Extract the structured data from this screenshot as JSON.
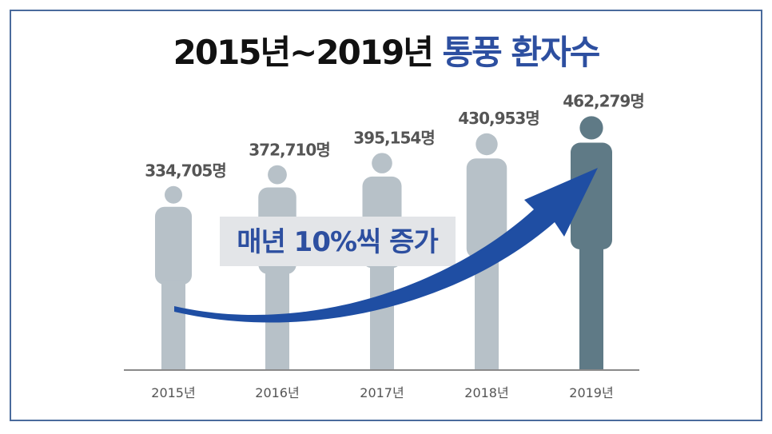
{
  "title": {
    "main": "2015년~2019년",
    "accent": "통풍 환자수"
  },
  "colors": {
    "frame": "#4a6b9c",
    "title_accent": "#2d4fa0",
    "figure": "#b7c1c8",
    "figure_highlight": "#5f7a86",
    "arrow": "#1f4ea3",
    "callout_bg": "#e3e5e8",
    "callout_text": "#2d4fa0",
    "value_text": "#555555",
    "tick_text": "#555555"
  },
  "callout": "매년 10%씩 증가",
  "chart_data": {
    "type": "bar",
    "categories": [
      "2015년",
      "2016년",
      "2017년",
      "2018년",
      "2019년"
    ],
    "values": [
      334705,
      372710,
      395154,
      430953,
      462279
    ],
    "value_labels": [
      "334,705명",
      "372,710명",
      "395,154명",
      "430,953명",
      "462,279명"
    ],
    "highlight_index": 4,
    "title": "2015년~2019년 통풍 환자수",
    "xlabel": "",
    "ylabel": "",
    "grid": false
  }
}
